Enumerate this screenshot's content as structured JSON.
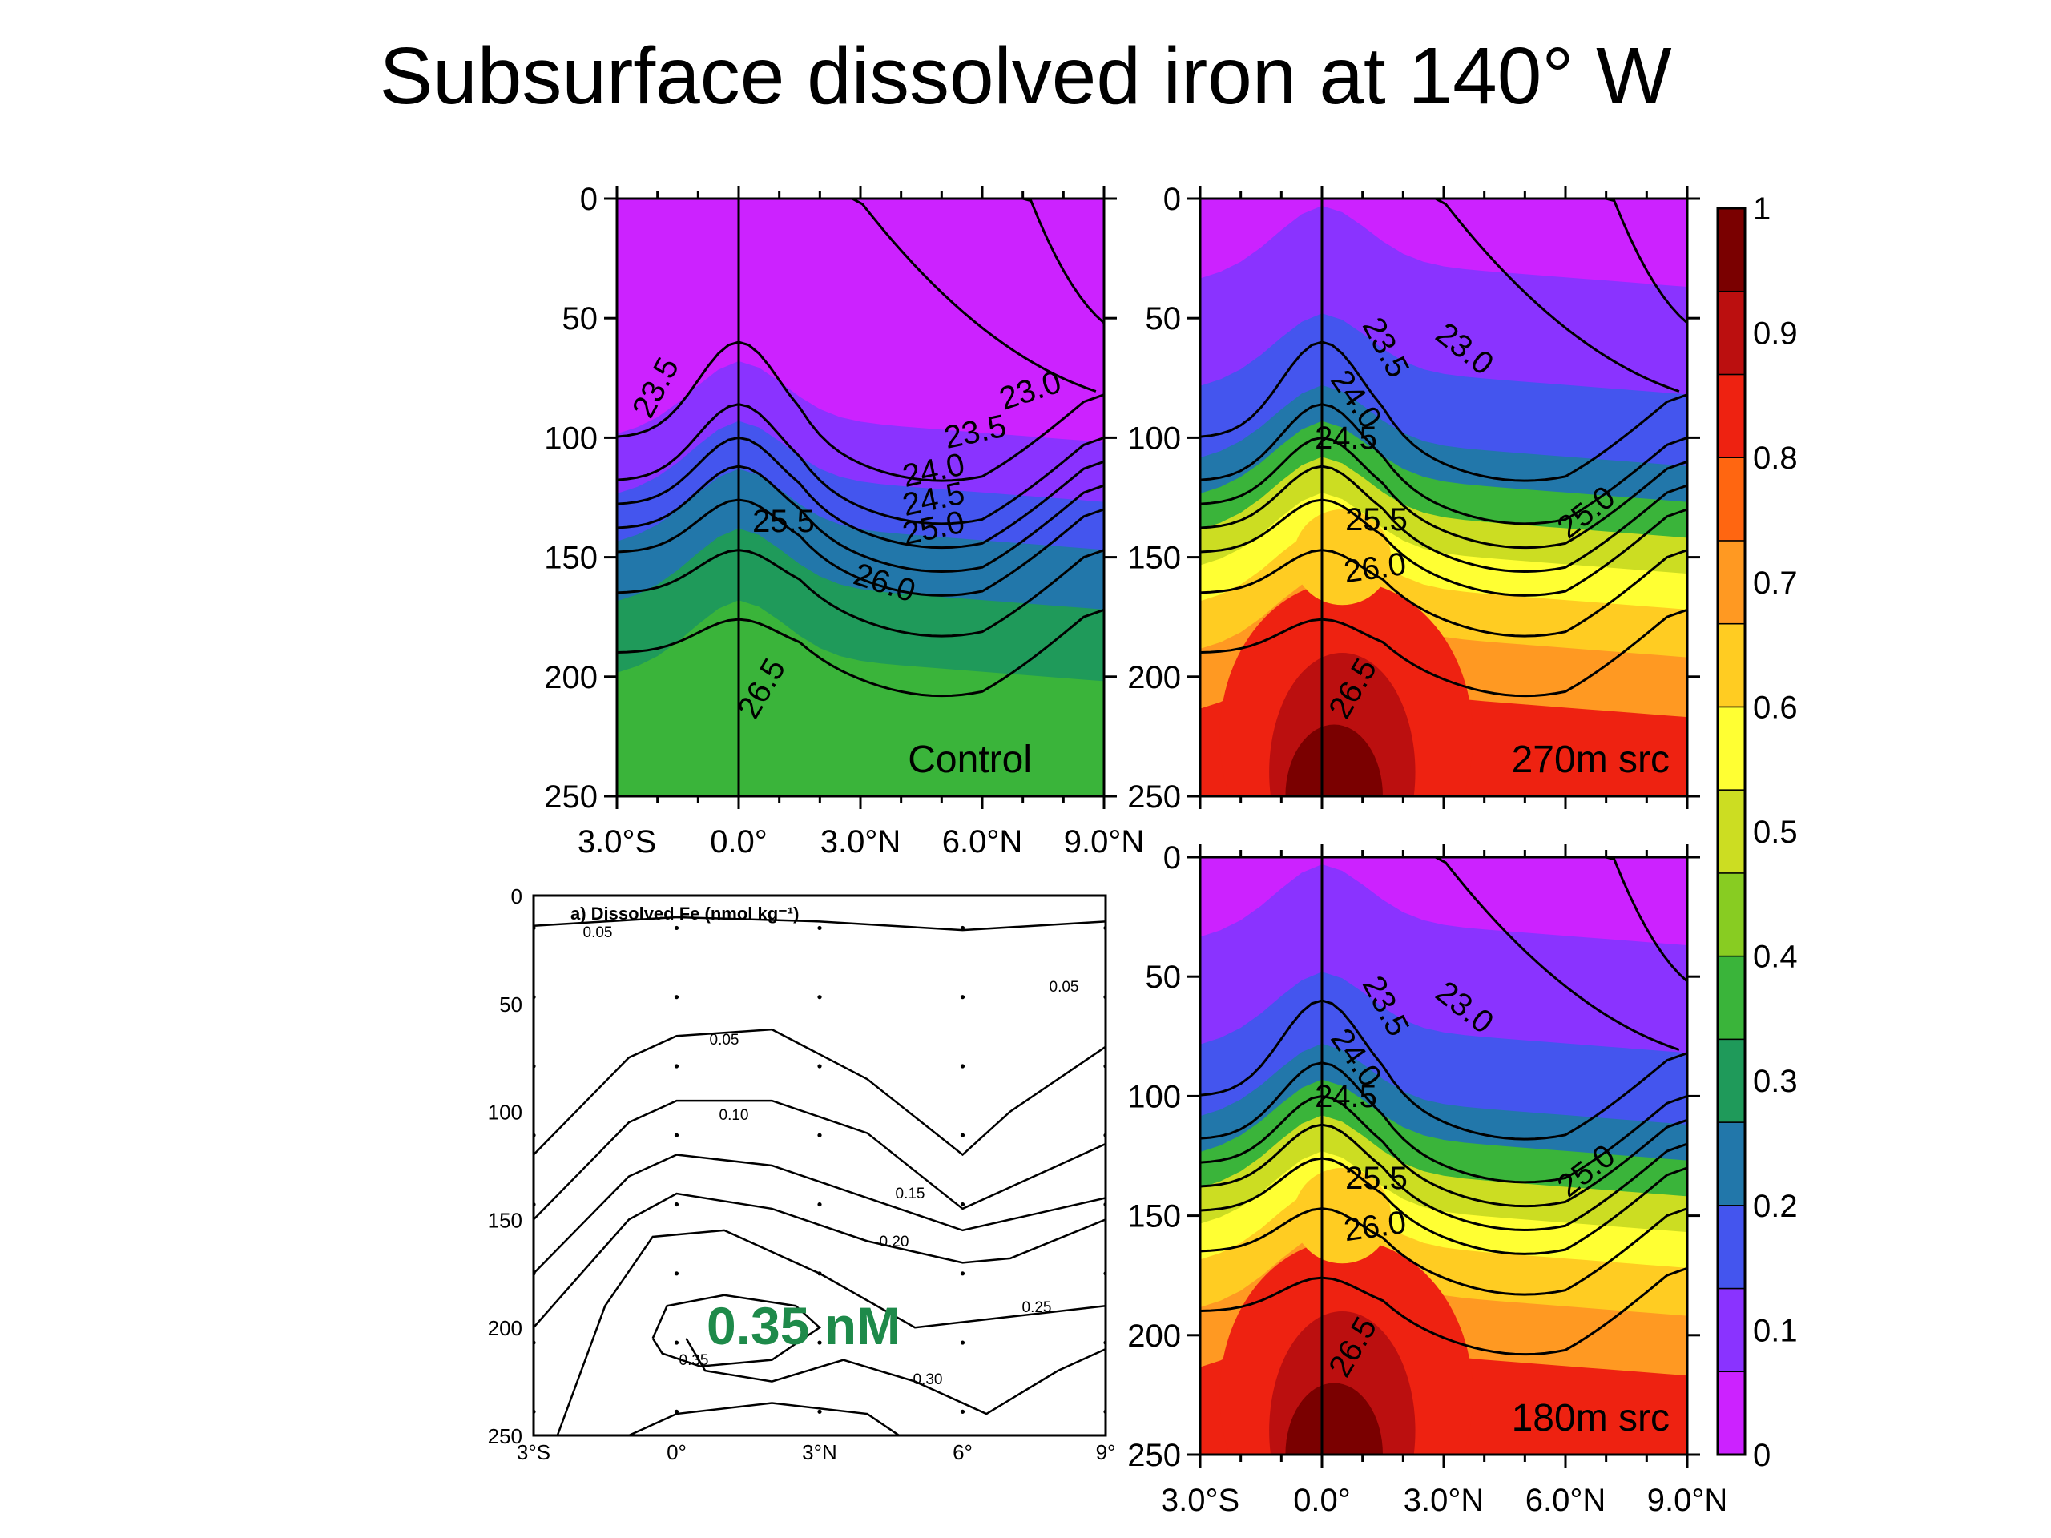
{
  "title": "Subsurface dissolved iron at 140° W",
  "colors": {
    "scale": [
      "#cc22ff",
      "#8a33ff",
      "#4455ee",
      "#2277aa",
      "#1f9a5a",
      "#3ab43a",
      "#88cc22",
      "#ccdd22",
      "#ffff33",
      "#ffcc22",
      "#ff9922",
      "#ff6611",
      "#ee2211",
      "#bb0f0f",
      "#7a0000"
    ]
  },
  "chart_data": [
    {
      "type": "heatmap",
      "panel": "Control",
      "label": "Control",
      "x_ticks": [
        "3.0°S",
        "0.0°",
        "3.0°N",
        "6.0°N",
        "9.0°N"
      ],
      "y_ticks": [
        "0",
        "50",
        "100",
        "150",
        "200",
        "250"
      ],
      "xlim": [
        -3,
        9
      ],
      "ylim": [
        0,
        250
      ],
      "y_reversed": true,
      "contour_labels": [
        "23.5",
        "23.0",
        "23.5",
        "24.0",
        "24.5",
        "25.0",
        "25.5",
        "26.0",
        "26.5"
      ]
    },
    {
      "type": "heatmap",
      "panel": "270m src",
      "label": "270m src",
      "x_ticks": [],
      "y_ticks": [
        "0",
        "50",
        "100",
        "150",
        "200",
        "250"
      ],
      "xlim": [
        -3,
        9
      ],
      "ylim": [
        0,
        250
      ],
      "y_reversed": true,
      "contour_labels": [
        "23.5",
        "23.0",
        "24.0",
        "24.5",
        "25.5",
        "25.0",
        "26.0",
        "26.5"
      ]
    },
    {
      "type": "heatmap",
      "panel": "180m src",
      "label": "180m src",
      "x_ticks": [
        "3.0°S",
        "0.0°",
        "3.0°N",
        "6.0°N",
        "9.0°N"
      ],
      "y_ticks": [
        "0",
        "50",
        "100",
        "150",
        "200",
        "250"
      ],
      "xlim": [
        -3,
        9
      ],
      "ylim": [
        0,
        250
      ],
      "y_reversed": true,
      "contour_labels": [
        "23.5",
        "23.0",
        "24.0",
        "24.5",
        "25.5",
        "25.0",
        "26.0",
        "26.5"
      ]
    },
    {
      "type": "line",
      "panel": "a) Dissolved Fe (nmol kg⁻¹)",
      "title": "a) Dissolved Fe (nmol kg⁻¹)",
      "x_ticks": [
        "3°S",
        "0°",
        "3°N",
        "6°",
        "9°"
      ],
      "y_ticks": [
        "0",
        "50",
        "100",
        "150",
        "200",
        "250"
      ],
      "contour_labels": [
        "0.05",
        "0.05",
        "0.05",
        "0.10",
        "0.15",
        "0.20",
        "0.25",
        "0.30",
        "0.35"
      ],
      "annotation": "0.35 nM"
    },
    {
      "type": "colorbar",
      "ticks": [
        "1",
        "0.9",
        "0.8",
        "0.7",
        "0.6",
        "0.5",
        "0.4",
        "0.3",
        "0.2",
        "0.1",
        "0"
      ],
      "range": [
        0,
        1
      ]
    }
  ]
}
